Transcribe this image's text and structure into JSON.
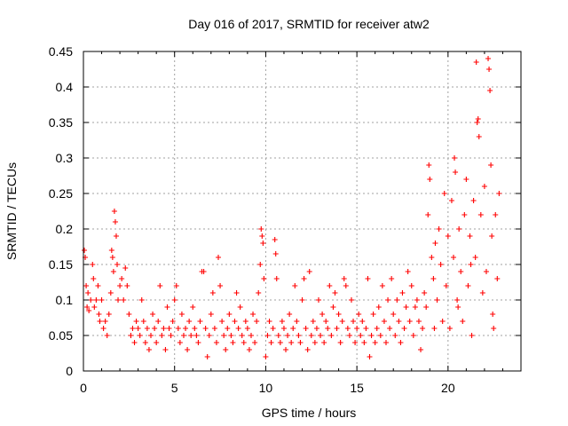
{
  "chart_data": {
    "type": "scatter",
    "title": "Day 016 of 2017, SRMTID for receiver atw2",
    "xlabel": "GPS time / hours",
    "ylabel": "SRMTID / TECUs",
    "xlim": [
      0,
      24
    ],
    "ylim": [
      0,
      0.45
    ],
    "xticks": [
      "0",
      "5",
      "10",
      "15",
      "20"
    ],
    "xtick_values": [
      0,
      5,
      10,
      15,
      20
    ],
    "yticks": [
      "0",
      "0.05",
      "0.1",
      "0.15",
      "0.2",
      "0.25",
      "0.3",
      "0.35",
      "0.4",
      "0.45"
    ],
    "ytick_values": [
      0,
      0.05,
      0.1,
      0.15,
      0.2,
      0.25,
      0.3,
      0.35,
      0.4,
      0.45
    ],
    "grid": true,
    "marker": "plus",
    "color": "#ff0000",
    "series": [
      {
        "name": "SRMTID",
        "points": [
          [
            0.05,
            0.17
          ],
          [
            0.1,
            0.16
          ],
          [
            0.15,
            0.12
          ],
          [
            0.2,
            0.09
          ],
          [
            0.25,
            0.11
          ],
          [
            0.3,
            0.085
          ],
          [
            0.4,
            0.1
          ],
          [
            0.5,
            0.15
          ],
          [
            0.55,
            0.13
          ],
          [
            0.6,
            0.09
          ],
          [
            0.7,
            0.1
          ],
          [
            0.8,
            0.12
          ],
          [
            0.85,
            0.08
          ],
          [
            0.9,
            0.07
          ],
          [
            1.0,
            0.1
          ],
          [
            1.1,
            0.06
          ],
          [
            1.2,
            0.07
          ],
          [
            1.3,
            0.05
          ],
          [
            1.4,
            0.08
          ],
          [
            1.5,
            0.11
          ],
          [
            1.55,
            0.17
          ],
          [
            1.6,
            0.16
          ],
          [
            1.65,
            0.14
          ],
          [
            1.7,
            0.225
          ],
          [
            1.75,
            0.21
          ],
          [
            1.8,
            0.19
          ],
          [
            1.85,
            0.15
          ],
          [
            1.9,
            0.1
          ],
          [
            2.0,
            0.12
          ],
          [
            2.1,
            0.13
          ],
          [
            2.2,
            0.1
          ],
          [
            2.3,
            0.145
          ],
          [
            2.4,
            0.12
          ],
          [
            2.5,
            0.08
          ],
          [
            2.6,
            0.05
          ],
          [
            2.7,
            0.06
          ],
          [
            2.8,
            0.04
          ],
          [
            2.9,
            0.07
          ],
          [
            3.0,
            0.06
          ],
          [
            3.1,
            0.05
          ],
          [
            3.2,
            0.1
          ],
          [
            3.3,
            0.07
          ],
          [
            3.4,
            0.04
          ],
          [
            3.5,
            0.06
          ],
          [
            3.6,
            0.03
          ],
          [
            3.7,
            0.05
          ],
          [
            3.8,
            0.08
          ],
          [
            3.9,
            0.06
          ],
          [
            4.0,
            0.04
          ],
          [
            4.1,
            0.07
          ],
          [
            4.2,
            0.12
          ],
          [
            4.3,
            0.05
          ],
          [
            4.4,
            0.06
          ],
          [
            4.5,
            0.03
          ],
          [
            4.6,
            0.09
          ],
          [
            4.7,
            0.06
          ],
          [
            4.8,
            0.05
          ],
          [
            4.9,
            0.07
          ],
          [
            5.0,
            0.1
          ],
          [
            5.1,
            0.12
          ],
          [
            5.2,
            0.06
          ],
          [
            5.3,
            0.04
          ],
          [
            5.4,
            0.08
          ],
          [
            5.5,
            0.05
          ],
          [
            5.6,
            0.06
          ],
          [
            5.7,
            0.03
          ],
          [
            5.8,
            0.07
          ],
          [
            5.9,
            0.05
          ],
          [
            6.0,
            0.09
          ],
          [
            6.1,
            0.06
          ],
          [
            6.2,
            0.05
          ],
          [
            6.3,
            0.04
          ],
          [
            6.4,
            0.07
          ],
          [
            6.5,
            0.14
          ],
          [
            6.6,
            0.14
          ],
          [
            6.7,
            0.06
          ],
          [
            6.8,
            0.02
          ],
          [
            6.9,
            0.05
          ],
          [
            7.0,
            0.08
          ],
          [
            7.1,
            0.11
          ],
          [
            7.2,
            0.06
          ],
          [
            7.3,
            0.04
          ],
          [
            7.4,
            0.16
          ],
          [
            7.5,
            0.12
          ],
          [
            7.6,
            0.07
          ],
          [
            7.7,
            0.05
          ],
          [
            7.8,
            0.03
          ],
          [
            7.9,
            0.06
          ],
          [
            8.0,
            0.08
          ],
          [
            8.1,
            0.05
          ],
          [
            8.2,
            0.04
          ],
          [
            8.3,
            0.07
          ],
          [
            8.4,
            0.11
          ],
          [
            8.5,
            0.06
          ],
          [
            8.6,
            0.09
          ],
          [
            8.7,
            0.05
          ],
          [
            8.8,
            0.04
          ],
          [
            8.9,
            0.07
          ],
          [
            9.0,
            0.06
          ],
          [
            9.1,
            0.03
          ],
          [
            9.2,
            0.05
          ],
          [
            9.3,
            0.08
          ],
          [
            9.4,
            0.04
          ],
          [
            9.5,
            0.07
          ],
          [
            9.6,
            0.11
          ],
          [
            9.7,
            0.15
          ],
          [
            9.75,
            0.2
          ],
          [
            9.8,
            0.19
          ],
          [
            9.85,
            0.18
          ],
          [
            9.9,
            0.13
          ],
          [
            10.0,
            0.02
          ],
          [
            10.1,
            0.05
          ],
          [
            10.2,
            0.07
          ],
          [
            10.3,
            0.04
          ],
          [
            10.4,
            0.06
          ],
          [
            10.5,
            0.185
          ],
          [
            10.55,
            0.165
          ],
          [
            10.6,
            0.13
          ],
          [
            10.7,
            0.05
          ],
          [
            10.8,
            0.04
          ],
          [
            10.9,
            0.07
          ],
          [
            11.0,
            0.06
          ],
          [
            11.1,
            0.03
          ],
          [
            11.2,
            0.05
          ],
          [
            11.3,
            0.08
          ],
          [
            11.4,
            0.04
          ],
          [
            11.5,
            0.06
          ],
          [
            11.6,
            0.12
          ],
          [
            11.7,
            0.07
          ],
          [
            11.8,
            0.05
          ],
          [
            11.9,
            0.04
          ],
          [
            12.0,
            0.1
          ],
          [
            12.1,
            0.13
          ],
          [
            12.2,
            0.06
          ],
          [
            12.3,
            0.03
          ],
          [
            12.4,
            0.14
          ],
          [
            12.5,
            0.05
          ],
          [
            12.6,
            0.07
          ],
          [
            12.7,
            0.04
          ],
          [
            12.8,
            0.06
          ],
          [
            12.9,
            0.1
          ],
          [
            13.0,
            0.05
          ],
          [
            13.1,
            0.08
          ],
          [
            13.2,
            0.04
          ],
          [
            13.3,
            0.07
          ],
          [
            13.4,
            0.06
          ],
          [
            13.5,
            0.12
          ],
          [
            13.6,
            0.05
          ],
          [
            13.7,
            0.09
          ],
          [
            13.8,
            0.11
          ],
          [
            13.9,
            0.06
          ],
          [
            14.0,
            0.08
          ],
          [
            14.1,
            0.04
          ],
          [
            14.2,
            0.07
          ],
          [
            14.3,
            0.13
          ],
          [
            14.4,
            0.12
          ],
          [
            14.5,
            0.06
          ],
          [
            14.6,
            0.05
          ],
          [
            14.7,
            0.1
          ],
          [
            14.8,
            0.07
          ],
          [
            14.9,
            0.04
          ],
          [
            15.0,
            0.06
          ],
          [
            15.1,
            0.08
          ],
          [
            15.2,
            0.05
          ],
          [
            15.3,
            0.07
          ],
          [
            15.4,
            0.04
          ],
          [
            15.5,
            0.06
          ],
          [
            15.6,
            0.13
          ],
          [
            15.7,
            0.02
          ],
          [
            15.8,
            0.05
          ],
          [
            15.9,
            0.08
          ],
          [
            16.0,
            0.04
          ],
          [
            16.1,
            0.06
          ],
          [
            16.2,
            0.09
          ],
          [
            16.3,
            0.05
          ],
          [
            16.4,
            0.12
          ],
          [
            16.5,
            0.07
          ],
          [
            16.6,
            0.04
          ],
          [
            16.7,
            0.1
          ],
          [
            16.8,
            0.06
          ],
          [
            16.9,
            0.13
          ],
          [
            17.0,
            0.08
          ],
          [
            17.1,
            0.05
          ],
          [
            17.2,
            0.1
          ],
          [
            17.3,
            0.07
          ],
          [
            17.4,
            0.04
          ],
          [
            17.5,
            0.11
          ],
          [
            17.6,
            0.06
          ],
          [
            17.7,
            0.09
          ],
          [
            17.8,
            0.14
          ],
          [
            17.9,
            0.07
          ],
          [
            18.0,
            0.12
          ],
          [
            18.1,
            0.05
          ],
          [
            18.2,
            0.09
          ],
          [
            18.3,
            0.1
          ],
          [
            18.4,
            0.07
          ],
          [
            18.5,
            0.03
          ],
          [
            18.6,
            0.06
          ],
          [
            18.7,
            0.11
          ],
          [
            18.8,
            0.09
          ],
          [
            18.9,
            0.22
          ],
          [
            18.95,
            0.29
          ],
          [
            19.0,
            0.27
          ],
          [
            19.1,
            0.16
          ],
          [
            19.2,
            0.13
          ],
          [
            19.3,
            0.18
          ],
          [
            19.4,
            0.1
          ],
          [
            19.5,
            0.2
          ],
          [
            19.6,
            0.15
          ],
          [
            19.7,
            0.07
          ],
          [
            19.8,
            0.25
          ],
          [
            19.9,
            0.12
          ],
          [
            20.0,
            0.19
          ],
          [
            20.1,
            0.06
          ],
          [
            20.2,
            0.24
          ],
          [
            20.3,
            0.16
          ],
          [
            20.35,
            0.3
          ],
          [
            20.4,
            0.28
          ],
          [
            20.5,
            0.1
          ],
          [
            20.6,
            0.2
          ],
          [
            20.7,
            0.14
          ],
          [
            20.8,
            0.07
          ],
          [
            20.9,
            0.22
          ],
          [
            21.0,
            0.27
          ],
          [
            21.1,
            0.12
          ],
          [
            21.2,
            0.19
          ],
          [
            21.3,
            0.05
          ],
          [
            21.4,
            0.24
          ],
          [
            21.5,
            0.16
          ],
          [
            21.6,
            0.35
          ],
          [
            21.65,
            0.355
          ],
          [
            21.7,
            0.33
          ],
          [
            21.8,
            0.22
          ],
          [
            21.9,
            0.11
          ],
          [
            22.0,
            0.26
          ],
          [
            22.1,
            0.14
          ],
          [
            22.2,
            0.44
          ],
          [
            22.25,
            0.425
          ],
          [
            22.3,
            0.395
          ],
          [
            22.35,
            0.29
          ],
          [
            22.4,
            0.19
          ],
          [
            22.5,
            0.06
          ],
          [
            22.6,
            0.22
          ],
          [
            22.7,
            0.13
          ],
          [
            22.8,
            0.25
          ],
          [
            21.55,
            0.435
          ],
          [
            22.45,
            0.08
          ],
          [
            20.55,
            0.09
          ],
          [
            19.25,
            0.06
          ],
          [
            21.25,
            0.15
          ]
        ]
      }
    ]
  }
}
